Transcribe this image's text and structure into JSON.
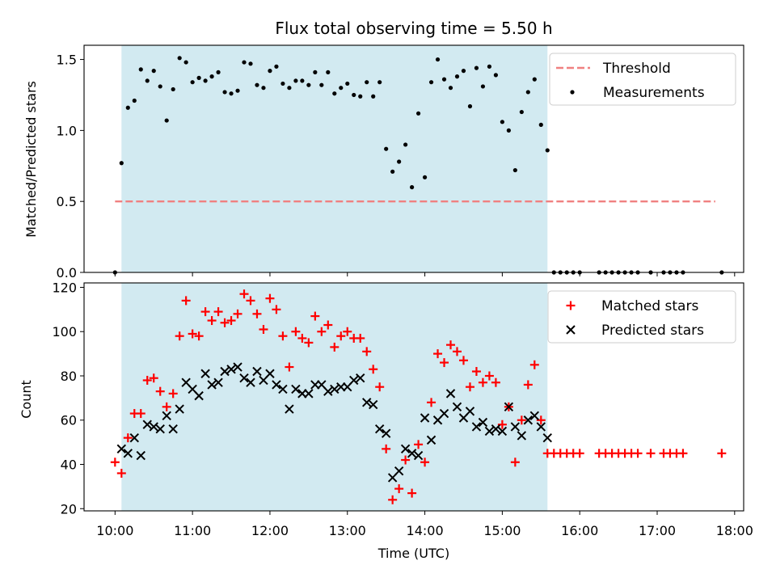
{
  "chart_data": [
    {
      "type": "scatter",
      "title": "Flux total observing time = 5.50 h",
      "xlabel": "",
      "ylabel": "Matched/Predicted stars",
      "xlim": [
        "09:36",
        "18:07"
      ],
      "ylim": [
        0,
        1.6
      ],
      "yticks": [
        0.0,
        0.5,
        1.0,
        1.5
      ],
      "yticklabels": [
        "0.0",
        "0.5",
        "1.0",
        "1.5"
      ],
      "shaded_interval": [
        "10:05",
        "15:35"
      ],
      "shaded_color": "#add8e6",
      "threshold": {
        "name": "Threshold",
        "value": 0.5,
        "x_range": [
          "10:00",
          "17:45"
        ],
        "color": "#f08080"
      },
      "legend": [
        "Threshold",
        "Measurements"
      ],
      "legend_position": "upper right",
      "series": [
        {
          "name": "Measurements",
          "color": "#000000",
          "points": [
            [
              "10:00",
              0.0
            ],
            [
              "10:05",
              0.77
            ],
            [
              "10:10",
              1.16
            ],
            [
              "10:15",
              1.21
            ],
            [
              "10:20",
              1.43
            ],
            [
              "10:25",
              1.35
            ],
            [
              "10:30",
              1.42
            ],
            [
              "10:35",
              1.31
            ],
            [
              "10:40",
              1.07
            ],
            [
              "10:45",
              1.29
            ],
            [
              "10:50",
              1.51
            ],
            [
              "10:55",
              1.48
            ],
            [
              "11:00",
              1.34
            ],
            [
              "11:05",
              1.37
            ],
            [
              "11:10",
              1.35
            ],
            [
              "11:15",
              1.38
            ],
            [
              "11:20",
              1.41
            ],
            [
              "11:25",
              1.27
            ],
            [
              "11:30",
              1.26
            ],
            [
              "11:35",
              1.28
            ],
            [
              "11:40",
              1.48
            ],
            [
              "11:45",
              1.47
            ],
            [
              "11:50",
              1.32
            ],
            [
              "11:55",
              1.3
            ],
            [
              "12:00",
              1.42
            ],
            [
              "12:05",
              1.45
            ],
            [
              "12:10",
              1.33
            ],
            [
              "12:15",
              1.3
            ],
            [
              "12:20",
              1.35
            ],
            [
              "12:25",
              1.35
            ],
            [
              "12:30",
              1.32
            ],
            [
              "12:35",
              1.41
            ],
            [
              "12:40",
              1.32
            ],
            [
              "12:45",
              1.41
            ],
            [
              "12:50",
              1.26
            ],
            [
              "12:55",
              1.3
            ],
            [
              "13:00",
              1.33
            ],
            [
              "13:05",
              1.25
            ],
            [
              "13:10",
              1.24
            ],
            [
              "13:15",
              1.34
            ],
            [
              "13:20",
              1.24
            ],
            [
              "13:25",
              1.34
            ],
            [
              "13:30",
              0.87
            ],
            [
              "13:35",
              0.71
            ],
            [
              "13:40",
              0.78
            ],
            [
              "13:45",
              0.9
            ],
            [
              "13:50",
              0.6
            ],
            [
              "13:55",
              1.12
            ],
            [
              "14:00",
              0.67
            ],
            [
              "14:05",
              1.34
            ],
            [
              "14:10",
              1.5
            ],
            [
              "14:15",
              1.36
            ],
            [
              "14:20",
              1.3
            ],
            [
              "14:25",
              1.38
            ],
            [
              "14:30",
              1.42
            ],
            [
              "14:35",
              1.17
            ],
            [
              "14:40",
              1.44
            ],
            [
              "14:45",
              1.31
            ],
            [
              "14:50",
              1.45
            ],
            [
              "14:55",
              1.39
            ],
            [
              "15:00",
              1.06
            ],
            [
              "15:05",
              1.0
            ],
            [
              "15:10",
              0.72
            ],
            [
              "15:15",
              1.13
            ],
            [
              "15:20",
              1.27
            ],
            [
              "15:25",
              1.36
            ],
            [
              "15:30",
              1.04
            ],
            [
              "15:35",
              0.86
            ],
            [
              "15:40",
              0.0
            ],
            [
              "15:45",
              0.0
            ],
            [
              "15:50",
              0.0
            ],
            [
              "15:55",
              0.0
            ],
            [
              "16:00",
              0.0
            ],
            [
              "16:15",
              0.0
            ],
            [
              "16:20",
              0.0
            ],
            [
              "16:25",
              0.0
            ],
            [
              "16:30",
              0.0
            ],
            [
              "16:35",
              0.0
            ],
            [
              "16:40",
              0.0
            ],
            [
              "16:45",
              0.0
            ],
            [
              "16:55",
              0.0
            ],
            [
              "17:05",
              0.0
            ],
            [
              "17:10",
              0.0
            ],
            [
              "17:15",
              0.0
            ],
            [
              "17:20",
              0.0
            ],
            [
              "17:50",
              0.0
            ]
          ]
        }
      ]
    },
    {
      "type": "scatter",
      "title": "",
      "xlabel": "Time (UTC)",
      "ylabel": "Count",
      "xlim": [
        "09:36",
        "18:07"
      ],
      "ylim": [
        19,
        122
      ],
      "yticks": [
        20,
        40,
        60,
        80,
        100,
        120
      ],
      "xticks": [
        "10:00",
        "11:00",
        "12:00",
        "13:00",
        "14:00",
        "15:00",
        "16:00",
        "17:00",
        "18:00"
      ],
      "shaded_interval": [
        "10:05",
        "15:35"
      ],
      "shaded_color": "#add8e6",
      "legend": [
        "Matched stars",
        "Predicted stars"
      ],
      "legend_position": "upper right",
      "series": [
        {
          "name": "Matched stars",
          "marker": "+",
          "color": "#ff0000",
          "points": [
            [
              "10:00",
              41
            ],
            [
              "10:05",
              36
            ],
            [
              "10:10",
              52
            ],
            [
              "10:15",
              63
            ],
            [
              "10:20",
              63
            ],
            [
              "10:25",
              78
            ],
            [
              "10:30",
              79
            ],
            [
              "10:35",
              73
            ],
            [
              "10:40",
              66
            ],
            [
              "10:45",
              72
            ],
            [
              "10:50",
              98
            ],
            [
              "10:55",
              114
            ],
            [
              "11:00",
              99
            ],
            [
              "11:05",
              98
            ],
            [
              "11:10",
              109
            ],
            [
              "11:15",
              105
            ],
            [
              "11:20",
              109
            ],
            [
              "11:25",
              104
            ],
            [
              "11:30",
              105
            ],
            [
              "11:35",
              108
            ],
            [
              "11:40",
              117
            ],
            [
              "11:45",
              114
            ],
            [
              "11:50",
              108
            ],
            [
              "11:55",
              101
            ],
            [
              "12:00",
              115
            ],
            [
              "12:05",
              110
            ],
            [
              "12:10",
              98
            ],
            [
              "12:15",
              84
            ],
            [
              "12:20",
              100
            ],
            [
              "12:25",
              97
            ],
            [
              "12:30",
              95
            ],
            [
              "12:35",
              107
            ],
            [
              "12:40",
              100
            ],
            [
              "12:45",
              103
            ],
            [
              "12:50",
              93
            ],
            [
              "12:55",
              98
            ],
            [
              "13:00",
              100
            ],
            [
              "13:05",
              97
            ],
            [
              "13:10",
              97
            ],
            [
              "13:15",
              91
            ],
            [
              "13:20",
              83
            ],
            [
              "13:25",
              75
            ],
            [
              "13:30",
              47
            ],
            [
              "13:35",
              24
            ],
            [
              "13:40",
              29
            ],
            [
              "13:45",
              42
            ],
            [
              "13:50",
              27
            ],
            [
              "13:55",
              49
            ],
            [
              "14:00",
              41
            ],
            [
              "14:05",
              68
            ],
            [
              "14:10",
              90
            ],
            [
              "14:15",
              86
            ],
            [
              "14:20",
              94
            ],
            [
              "14:25",
              91
            ],
            [
              "14:30",
              87
            ],
            [
              "14:35",
              75
            ],
            [
              "14:40",
              82
            ],
            [
              "14:45",
              77
            ],
            [
              "14:50",
              80
            ],
            [
              "14:55",
              77
            ],
            [
              "15:00",
              58
            ],
            [
              "15:05",
              66
            ],
            [
              "15:10",
              41
            ],
            [
              "15:15",
              60
            ],
            [
              "15:20",
              76
            ],
            [
              "15:25",
              85
            ],
            [
              "15:30",
              60
            ],
            [
              "15:35",
              45
            ],
            [
              "15:40",
              45
            ],
            [
              "15:45",
              45
            ],
            [
              "15:50",
              45
            ],
            [
              "15:55",
              45
            ],
            [
              "16:00",
              45
            ],
            [
              "16:15",
              45
            ],
            [
              "16:20",
              45
            ],
            [
              "16:25",
              45
            ],
            [
              "16:30",
              45
            ],
            [
              "16:35",
              45
            ],
            [
              "16:40",
              45
            ],
            [
              "16:45",
              45
            ],
            [
              "16:55",
              45
            ],
            [
              "17:05",
              45
            ],
            [
              "17:10",
              45
            ],
            [
              "17:15",
              45
            ],
            [
              "17:20",
              45
            ],
            [
              "17:50",
              45
            ]
          ]
        },
        {
          "name": "Predicted stars",
          "marker": "x",
          "color": "#000000",
          "points": [
            [
              "10:05",
              47
            ],
            [
              "10:10",
              45
            ],
            [
              "10:15",
              52
            ],
            [
              "10:20",
              44
            ],
            [
              "10:25",
              58
            ],
            [
              "10:30",
              57
            ],
            [
              "10:35",
              56
            ],
            [
              "10:40",
              62
            ],
            [
              "10:45",
              56
            ],
            [
              "10:50",
              65
            ],
            [
              "10:55",
              77
            ],
            [
              "11:00",
              74
            ],
            [
              "11:05",
              71
            ],
            [
              "11:10",
              81
            ],
            [
              "11:15",
              76
            ],
            [
              "11:20",
              77
            ],
            [
              "11:25",
              82
            ],
            [
              "11:30",
              83
            ],
            [
              "11:35",
              84
            ],
            [
              "11:40",
              79
            ],
            [
              "11:45",
              77
            ],
            [
              "11:50",
              82
            ],
            [
              "11:55",
              78
            ],
            [
              "12:00",
              81
            ],
            [
              "12:05",
              76
            ],
            [
              "12:10",
              74
            ],
            [
              "12:15",
              65
            ],
            [
              "12:20",
              74
            ],
            [
              "12:25",
              72
            ],
            [
              "12:30",
              72
            ],
            [
              "12:35",
              76
            ],
            [
              "12:40",
              76
            ],
            [
              "12:45",
              73
            ],
            [
              "12:50",
              74
            ],
            [
              "12:55",
              75
            ],
            [
              "13:00",
              75
            ],
            [
              "13:05",
              78
            ],
            [
              "13:10",
              79
            ],
            [
              "13:15",
              68
            ],
            [
              "13:20",
              67
            ],
            [
              "13:25",
              56
            ],
            [
              "13:30",
              54
            ],
            [
              "13:35",
              34
            ],
            [
              "13:40",
              37
            ],
            [
              "13:45",
              47
            ],
            [
              "13:50",
              45
            ],
            [
              "13:55",
              44
            ],
            [
              "14:00",
              61
            ],
            [
              "14:05",
              51
            ],
            [
              "14:10",
              60
            ],
            [
              "14:15",
              63
            ],
            [
              "14:20",
              72
            ],
            [
              "14:25",
              66
            ],
            [
              "14:30",
              61
            ],
            [
              "14:35",
              64
            ],
            [
              "14:40",
              57
            ],
            [
              "14:45",
              59
            ],
            [
              "14:50",
              55
            ],
            [
              "14:55",
              56
            ],
            [
              "15:00",
              55
            ],
            [
              "15:05",
              66
            ],
            [
              "15:10",
              57
            ],
            [
              "15:15",
              53
            ],
            [
              "15:20",
              60
            ],
            [
              "15:25",
              62
            ],
            [
              "15:30",
              57
            ],
            [
              "15:35",
              52
            ]
          ]
        }
      ]
    }
  ]
}
